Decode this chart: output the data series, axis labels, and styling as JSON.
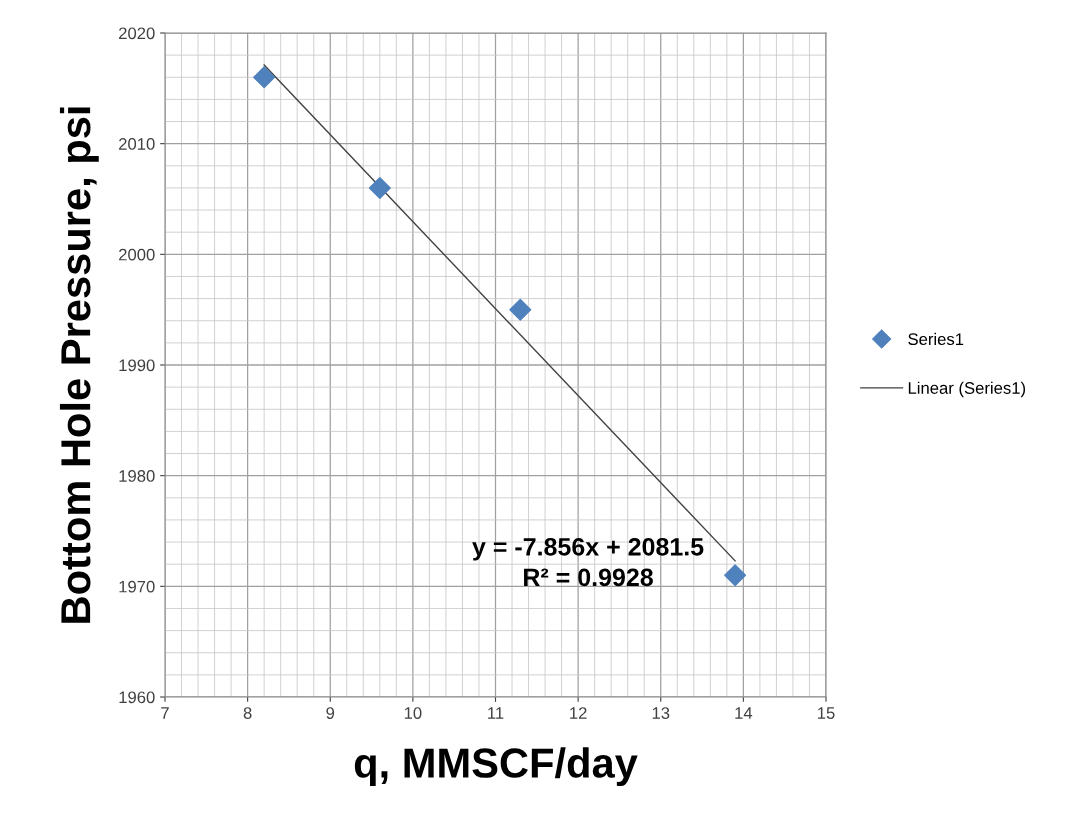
{
  "chart_data": {
    "type": "scatter",
    "xlabel": "q, MMSCF/day",
    "ylabel": "Bottom Hole Pressure, psi",
    "x": [
      8.2,
      9.6,
      11.3,
      13.9
    ],
    "series": [
      {
        "name": "Series1",
        "color": "#4f81bd",
        "marker": "diamond",
        "values": [
          2016,
          2006,
          1995,
          1971
        ]
      },
      {
        "name": "Linear (Series1)",
        "type": "line",
        "color": "#404040",
        "marker": "none",
        "line_style": "solid",
        "x": [
          8.2,
          13.9
        ],
        "values": [
          2017.1,
          1972.3
        ]
      }
    ],
    "annotations": [
      "y = -7.856x + 2081.5\nR² = 0.9928"
    ],
    "xlim": [
      7,
      15
    ],
    "xticks": [
      7,
      8,
      9,
      10,
      11,
      12,
      13,
      14,
      15
    ],
    "ylim": [
      1960,
      2020
    ],
    "yticks": [
      1960,
      1970,
      1980,
      1990,
      2000,
      2010,
      2020
    ],
    "grid": true,
    "legend": "right"
  }
}
